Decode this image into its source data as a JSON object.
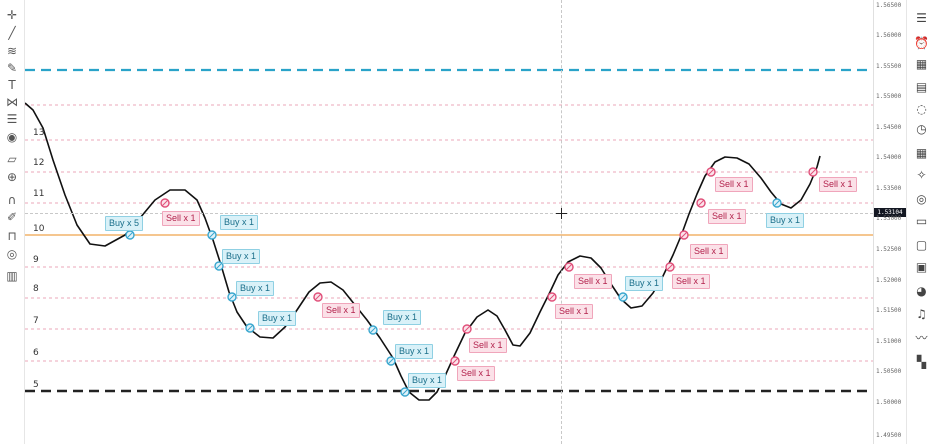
{
  "left_toolbar": {
    "tools": [
      {
        "name": "crosshair-tool-icon",
        "glyph": "✛"
      },
      {
        "name": "trend-line-tool-icon",
        "glyph": "╱"
      },
      {
        "name": "fib-tool-icon",
        "glyph": "≋"
      },
      {
        "name": "brush-tool-icon",
        "glyph": "✎"
      },
      {
        "name": "text-tool-icon",
        "glyph": "T"
      },
      {
        "name": "pattern-tool-icon",
        "glyph": "⋈"
      },
      {
        "name": "measure-tool-icon",
        "glyph": "☰"
      },
      {
        "name": "icon-tool-icon",
        "glyph": "◉"
      },
      {
        "name": "ruler-tool-icon",
        "glyph": "▱"
      },
      {
        "name": "zoom-tool-icon",
        "glyph": "⊕"
      },
      {
        "name": "magnet-tool-icon",
        "glyph": "∩"
      },
      {
        "name": "lock-drawing-tool-icon",
        "glyph": "✐"
      },
      {
        "name": "lock-icon",
        "glyph": "⊓"
      },
      {
        "name": "eye-icon",
        "glyph": "◎"
      },
      {
        "name": "trash-icon",
        "glyph": "▥"
      }
    ]
  },
  "right_toolbar": {
    "tools": [
      {
        "name": "watchlist-icon",
        "glyph": "☰"
      },
      {
        "name": "alarm-clock-icon",
        "glyph": "⏰"
      },
      {
        "name": "calendar-icon",
        "glyph": "▦"
      },
      {
        "name": "screener-icon",
        "glyph": "▤"
      },
      {
        "name": "chat-icon",
        "glyph": "◌"
      },
      {
        "name": "history-icon",
        "glyph": "◷"
      },
      {
        "name": "calculator-icon",
        "glyph": "▦"
      },
      {
        "name": "lightbulb-icon",
        "glyph": "✧"
      },
      {
        "name": "broadcast-icon",
        "glyph": "◎"
      },
      {
        "name": "comments-icon",
        "glyph": "▭"
      },
      {
        "name": "message-icon",
        "glyph": "▢"
      },
      {
        "name": "hotlist-icon",
        "glyph": "▣"
      },
      {
        "name": "pie-icon",
        "glyph": "◕"
      },
      {
        "name": "bell-icon",
        "glyph": "♫"
      },
      {
        "name": "trend-icon",
        "glyph": "〰"
      },
      {
        "name": "layout-icon",
        "glyph": "▚"
      }
    ]
  },
  "price_axis": {
    "labels": [
      "1.56500",
      "1.56000",
      "1.55500",
      "1.55000",
      "1.54500",
      "1.54000",
      "1.53500",
      "1.53000",
      "1.52500",
      "1.52000",
      "1.51500",
      "1.51000",
      "1.50500",
      "1.50000",
      "1.49500"
    ],
    "current_price": "1.53104"
  },
  "level_labels": [
    "13",
    "12",
    "11",
    "10",
    "9",
    "8",
    "7",
    "6",
    "5"
  ],
  "trades": [
    {
      "side": "buy",
      "text": "Buy x 5"
    },
    {
      "side": "sell",
      "text": "Sell x 1"
    },
    {
      "side": "buy",
      "text": "Buy x 1"
    },
    {
      "side": "buy",
      "text": "Buy x 1"
    },
    {
      "side": "buy",
      "text": "Buy x 1"
    },
    {
      "side": "buy",
      "text": "Buy x 1"
    },
    {
      "side": "sell",
      "text": "Sell x 1"
    },
    {
      "side": "buy",
      "text": "Buy x 1"
    },
    {
      "side": "buy",
      "text": "Buy x 1"
    },
    {
      "side": "buy",
      "text": "Buy x 1"
    },
    {
      "side": "sell",
      "text": "Sell x 1"
    },
    {
      "side": "sell",
      "text": "Sell x 1"
    },
    {
      "side": "sell",
      "text": "Sell x 1"
    },
    {
      "side": "sell",
      "text": "Sell x 1"
    },
    {
      "side": "buy",
      "text": "Buy x 1"
    },
    {
      "side": "sell",
      "text": "Sell x 1"
    },
    {
      "side": "sell",
      "text": "Sell x 1"
    },
    {
      "side": "sell",
      "text": "Sell x 1"
    },
    {
      "side": "sell",
      "text": "Sell x 1"
    },
    {
      "side": "buy",
      "text": "Buy x 1"
    },
    {
      "side": "sell",
      "text": "Sell x 1"
    }
  ],
  "colors": {
    "take_profit_line": "#2aa3c9",
    "stop_line": "#222222",
    "entry_line": "#f2b46a",
    "grid_level": "#e58aa3",
    "price_curve": "#111111",
    "buy_marker": "#3aa7cf",
    "sell_marker": "#e0507a"
  }
}
